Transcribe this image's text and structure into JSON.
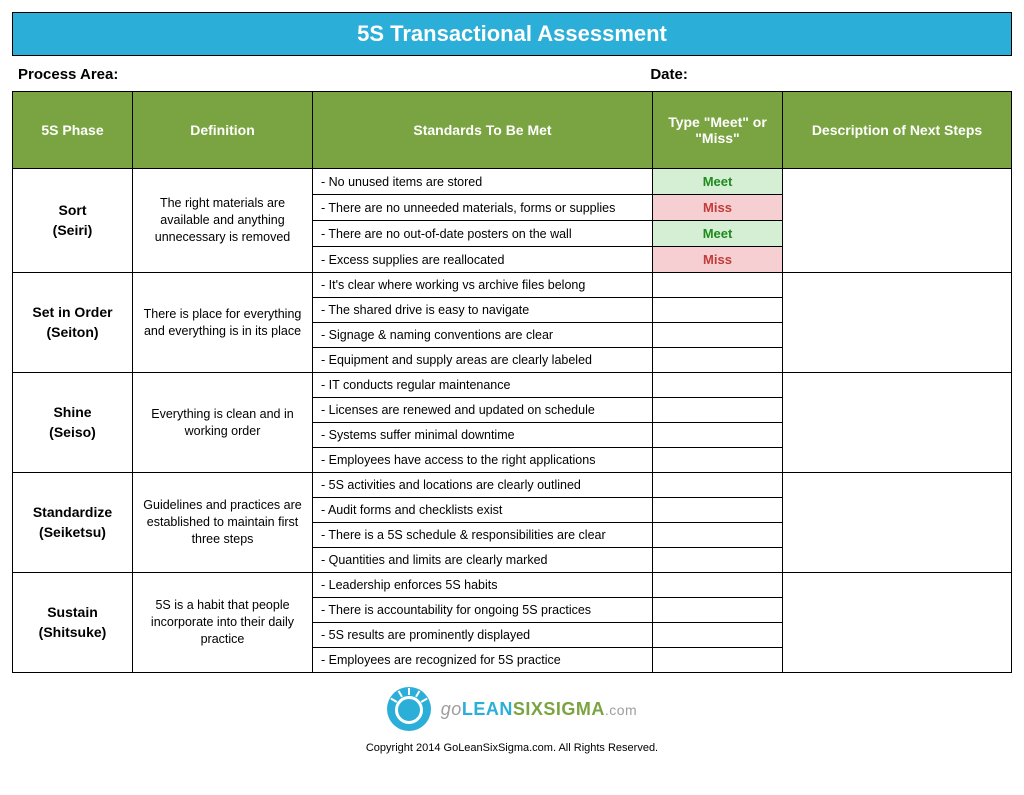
{
  "title": "5S Transactional Assessment",
  "meta": {
    "process_area_label": "Process Area:",
    "date_label": "Date:"
  },
  "columns": [
    "5S Phase",
    "Definition",
    "Standards To Be Met",
    "Type \"Meet\" or \"Miss\"",
    "Description of Next Steps"
  ],
  "phases": [
    {
      "name": "Sort",
      "subname": "(Seiri)",
      "definition": "The right materials are available and anything unnecessary is removed",
      "standards": [
        {
          "text": "- No unused items are stored",
          "mm": "Meet"
        },
        {
          "text": "- There are no unneeded materials, forms or supplies",
          "mm": "Miss"
        },
        {
          "text": "- There are no out-of-date posters on the wall",
          "mm": "Meet"
        },
        {
          "text": "- Excess supplies are reallocated",
          "mm": "Miss"
        }
      ]
    },
    {
      "name": "Set in Order",
      "subname": "(Seiton)",
      "definition": "There is place for everything and everything is in its place",
      "standards": [
        {
          "text": "- It's clear where working vs archive files belong",
          "mm": ""
        },
        {
          "text": "- The shared drive is easy to navigate",
          "mm": ""
        },
        {
          "text": "- Signage & naming conventions are clear",
          "mm": ""
        },
        {
          "text": "- Equipment and supply areas are clearly labeled",
          "mm": ""
        }
      ]
    },
    {
      "name": "Shine",
      "subname": "(Seiso)",
      "definition": "Everything is clean and in working order",
      "standards": [
        {
          "text": "- IT conducts regular maintenance",
          "mm": ""
        },
        {
          "text": "- Licenses are renewed and updated on schedule",
          "mm": ""
        },
        {
          "text": "- Systems suffer minimal downtime",
          "mm": ""
        },
        {
          "text": "- Employees have access to the right applications",
          "mm": ""
        }
      ]
    },
    {
      "name": "Standardize",
      "subname": "(Seiketsu)",
      "definition": "Guidelines and practices are established to maintain first three steps",
      "standards": [
        {
          "text": "- 5S activities and locations are clearly outlined",
          "mm": ""
        },
        {
          "text": "- Audit forms and checklists exist",
          "mm": ""
        },
        {
          "text": "- There is a 5S schedule & responsibilities are clear",
          "mm": ""
        },
        {
          "text": "- Quantities and limits are clearly marked",
          "mm": ""
        }
      ]
    },
    {
      "name": "Sustain",
      "subname": "(Shitsuke)",
      "definition": "5S is a habit that people incorporate into their daily practice",
      "standards": [
        {
          "text": "- Leadership enforces 5S habits",
          "mm": ""
        },
        {
          "text": "- There is accountability for ongoing 5S practices",
          "mm": ""
        },
        {
          "text": "- 5S results are prominently displayed",
          "mm": ""
        },
        {
          "text": "- Employees are recognized for 5S practice",
          "mm": ""
        }
      ]
    }
  ],
  "logo": {
    "go": "go",
    "lean": "LEAN",
    "six": "SIXSIGMA",
    "dom": ".com"
  },
  "copyright": "Copyright 2014 GoLeanSixSigma.com. All Rights Reserved.",
  "colors": {
    "title_bg": "#2bafd8",
    "header_bg": "#7aa441",
    "meet_bg": "#d4efd4",
    "meet_fg": "#1f8b1f",
    "miss_bg": "#f5cfd1",
    "miss_fg": "#c23b3b",
    "border": "#000000"
  }
}
